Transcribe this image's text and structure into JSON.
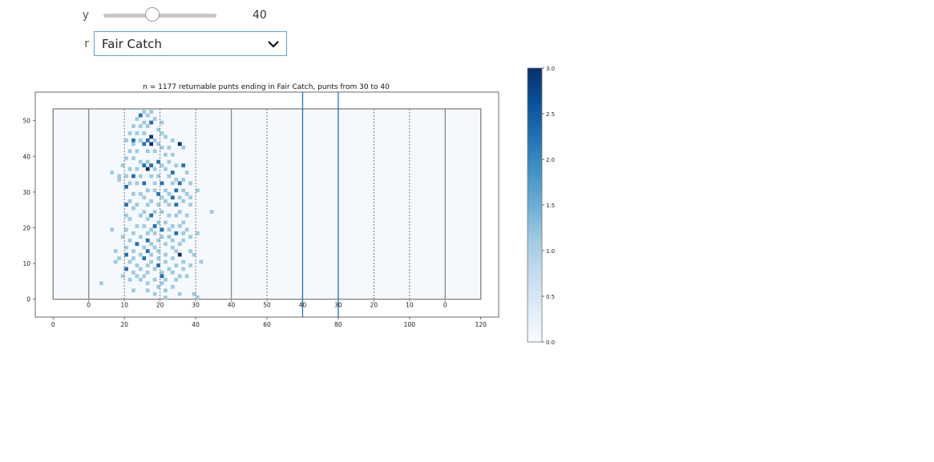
{
  "controls": {
    "y_label": "y",
    "y_value": "40",
    "y_slider_fraction": 0.43,
    "r_label": "r",
    "r_selected": "Fair Catch"
  },
  "chart_data": {
    "type": "heatmap",
    "title": "n = 1177 returnable punts ending in Fair Catch, punts from 30 to 40",
    "xlabel": "",
    "ylabel": "",
    "xlim": [
      -5,
      125
    ],
    "ylim": [
      -5,
      58
    ],
    "x_ticks": [
      0,
      20,
      40,
      60,
      80,
      100,
      120
    ],
    "y_ticks": [
      0,
      10,
      20,
      30,
      40,
      50
    ],
    "field": {
      "x_range": [
        0,
        120
      ],
      "y_range": [
        0,
        53.3
      ],
      "end_zone_lines": [
        10,
        110
      ],
      "solid_lines": [
        10,
        50,
        110
      ],
      "dashed_lines": [
        20,
        30,
        40,
        60,
        90,
        100
      ],
      "range_lines": [
        70,
        80
      ],
      "yard_labels": [
        {
          "x": 10,
          "text": "0"
        },
        {
          "x": 20,
          "text": "10"
        },
        {
          "x": 30,
          "text": "20"
        },
        {
          "x": 40,
          "text": "30"
        },
        {
          "x": 50,
          "text": "40"
        },
        {
          "x": 60,
          "text": "50"
        },
        {
          "x": 70,
          "text": "40"
        },
        {
          "x": 80,
          "text": "30"
        },
        {
          "x": 90,
          "text": "20"
        },
        {
          "x": 100,
          "text": "10"
        },
        {
          "x": 110,
          "text": "0"
        }
      ]
    },
    "colorbar": {
      "min": 0,
      "max": 3,
      "ticks": [
        "0.0",
        "0.5",
        "1.0",
        "1.5",
        "2.0",
        "2.5",
        "3.0"
      ],
      "colormap": "Blues"
    },
    "cells": [
      [
        25,
        52,
        1
      ],
      [
        27,
        52,
        1
      ],
      [
        24,
        51,
        2
      ],
      [
        26,
        51,
        1
      ],
      [
        28,
        50,
        1
      ],
      [
        23,
        50,
        1
      ],
      [
        25,
        49,
        1
      ],
      [
        27,
        49,
        2
      ],
      [
        30,
        49,
        1
      ],
      [
        22,
        48,
        1
      ],
      [
        24,
        48,
        1
      ],
      [
        26,
        48,
        1
      ],
      [
        29,
        47,
        1
      ],
      [
        21,
        46,
        1
      ],
      [
        23,
        46,
        1
      ],
      [
        25,
        46,
        1
      ],
      [
        27,
        45,
        3
      ],
      [
        30,
        46,
        1
      ],
      [
        20,
        44,
        1
      ],
      [
        22,
        44,
        2
      ],
      [
        24,
        44,
        1
      ],
      [
        26,
        44,
        2
      ],
      [
        28,
        44,
        1
      ],
      [
        31,
        45,
        1
      ],
      [
        33,
        44,
        1
      ],
      [
        35,
        43,
        3
      ],
      [
        22,
        43,
        1
      ],
      [
        25,
        43,
        2
      ],
      [
        27,
        43,
        3
      ],
      [
        29,
        43,
        1
      ],
      [
        30,
        42,
        1
      ],
      [
        32,
        42,
        1
      ],
      [
        36,
        42,
        1
      ],
      [
        21,
        41,
        1
      ],
      [
        23,
        41,
        1
      ],
      [
        26,
        41,
        1
      ],
      [
        28,
        41,
        1
      ],
      [
        31,
        40,
        1
      ],
      [
        33,
        40,
        1
      ],
      [
        20,
        39,
        1
      ],
      [
        22,
        39,
        1
      ],
      [
        24,
        38,
        1
      ],
      [
        26,
        38,
        1
      ],
      [
        29,
        38,
        2
      ],
      [
        32,
        38,
        1
      ],
      [
        25,
        37,
        2
      ],
      [
        27,
        37,
        2
      ],
      [
        30,
        37,
        1
      ],
      [
        34,
        37,
        1
      ],
      [
        36,
        37,
        2
      ],
      [
        19,
        37,
        1
      ],
      [
        21,
        36,
        1
      ],
      [
        23,
        36,
        1
      ],
      [
        26,
        36,
        3
      ],
      [
        28,
        36,
        1
      ],
      [
        31,
        36,
        1
      ],
      [
        33,
        35,
        2
      ],
      [
        37,
        35,
        1
      ],
      [
        16,
        35,
        1
      ],
      [
        18,
        34,
        1
      ],
      [
        20,
        34,
        1
      ],
      [
        22,
        34,
        2
      ],
      [
        24,
        34,
        1
      ],
      [
        27,
        34,
        1
      ],
      [
        29,
        34,
        1
      ],
      [
        32,
        34,
        1
      ],
      [
        34,
        33,
        1
      ],
      [
        36,
        33,
        1
      ],
      [
        18,
        33,
        1
      ],
      [
        21,
        32,
        1
      ],
      [
        23,
        32,
        1
      ],
      [
        25,
        32,
        2
      ],
      [
        28,
        32,
        1
      ],
      [
        30,
        32,
        2
      ],
      [
        33,
        32,
        1
      ],
      [
        35,
        32,
        2
      ],
      [
        38,
        32,
        1
      ],
      [
        20,
        31,
        2
      ],
      [
        26,
        30,
        1
      ],
      [
        28,
        30,
        1
      ],
      [
        31,
        30,
        1
      ],
      [
        34,
        30,
        2
      ],
      [
        36,
        30,
        1
      ],
      [
        40,
        30,
        1
      ],
      [
        22,
        29,
        1
      ],
      [
        24,
        29,
        1
      ],
      [
        29,
        29,
        2
      ],
      [
        32,
        29,
        1
      ],
      [
        37,
        29,
        1
      ],
      [
        25,
        28,
        1
      ],
      [
        30,
        28,
        1
      ],
      [
        33,
        28,
        2
      ],
      [
        35,
        28,
        1
      ],
      [
        38,
        28,
        1
      ],
      [
        21,
        27,
        1
      ],
      [
        27,
        27,
        1
      ],
      [
        31,
        27,
        1
      ],
      [
        34,
        26,
        2
      ],
      [
        36,
        27,
        1
      ],
      [
        20,
        26,
        2
      ],
      [
        23,
        26,
        1
      ],
      [
        26,
        26,
        1
      ],
      [
        29,
        26,
        1
      ],
      [
        32,
        26,
        1
      ],
      [
        38,
        26,
        1
      ],
      [
        22,
        25,
        1
      ],
      [
        25,
        24,
        1
      ],
      [
        28,
        24,
        1
      ],
      [
        30,
        24,
        1
      ],
      [
        35,
        24,
        1
      ],
      [
        44,
        24,
        1
      ],
      [
        20,
        23,
        1
      ],
      [
        24,
        23,
        1
      ],
      [
        27,
        23,
        2
      ],
      [
        32,
        23,
        1
      ],
      [
        34,
        23,
        1
      ],
      [
        37,
        23,
        1
      ],
      [
        21,
        22,
        1
      ],
      [
        26,
        22,
        1
      ],
      [
        29,
        21,
        1
      ],
      [
        31,
        21,
        1
      ],
      [
        36,
        21,
        1
      ],
      [
        23,
        20,
        1
      ],
      [
        25,
        20,
        1
      ],
      [
        28,
        20,
        2
      ],
      [
        33,
        20,
        1
      ],
      [
        35,
        20,
        1
      ],
      [
        16,
        19,
        1
      ],
      [
        20,
        19,
        1
      ],
      [
        27,
        19,
        1
      ],
      [
        30,
        19,
        2
      ],
      [
        32,
        19,
        1
      ],
      [
        37,
        19,
        1
      ],
      [
        22,
        18,
        1
      ],
      [
        26,
        18,
        1
      ],
      [
        28,
        18,
        1
      ],
      [
        34,
        18,
        2
      ],
      [
        36,
        18,
        1
      ],
      [
        40,
        18,
        1
      ],
      [
        19,
        17,
        1
      ],
      [
        24,
        17,
        1
      ],
      [
        30,
        17,
        1
      ],
      [
        32,
        17,
        1
      ],
      [
        38,
        17,
        1
      ],
      [
        21,
        16,
        1
      ],
      [
        26,
        16,
        2
      ],
      [
        29,
        16,
        1
      ],
      [
        33,
        16,
        1
      ],
      [
        36,
        16,
        1
      ],
      [
        23,
        15,
        2
      ],
      [
        27,
        15,
        1
      ],
      [
        31,
        15,
        1
      ],
      [
        35,
        15,
        1
      ],
      [
        20,
        14,
        1
      ],
      [
        25,
        14,
        1
      ],
      [
        28,
        14,
        1
      ],
      [
        33,
        14,
        1
      ],
      [
        17,
        13,
        1
      ],
      [
        22,
        13,
        1
      ],
      [
        26,
        13,
        2
      ],
      [
        29,
        13,
        1
      ],
      [
        34,
        13,
        1
      ],
      [
        38,
        13,
        1
      ],
      [
        20,
        12,
        2
      ],
      [
        24,
        12,
        1
      ],
      [
        27,
        12,
        1
      ],
      [
        31,
        12,
        1
      ],
      [
        35,
        12,
        3
      ],
      [
        39,
        12,
        1
      ],
      [
        18,
        11,
        1
      ],
      [
        22,
        11,
        1
      ],
      [
        25,
        11,
        2
      ],
      [
        29,
        11,
        1
      ],
      [
        33,
        11,
        1
      ],
      [
        17,
        10,
        1
      ],
      [
        21,
        10,
        1
      ],
      [
        27,
        10,
        1
      ],
      [
        31,
        10,
        1
      ],
      [
        36,
        10,
        1
      ],
      [
        41,
        10,
        1
      ],
      [
        23,
        9,
        1
      ],
      [
        26,
        9,
        1
      ],
      [
        29,
        9,
        2
      ],
      [
        34,
        9,
        1
      ],
      [
        38,
        9,
        1
      ],
      [
        20,
        8,
        2
      ],
      [
        24,
        8,
        1
      ],
      [
        28,
        8,
        1
      ],
      [
        32,
        8,
        1
      ],
      [
        36,
        8,
        1
      ],
      [
        22,
        7,
        1
      ],
      [
        26,
        7,
        1
      ],
      [
        30,
        7,
        1
      ],
      [
        33,
        7,
        1
      ],
      [
        19,
        6,
        1
      ],
      [
        23,
        6,
        1
      ],
      [
        25,
        6,
        1
      ],
      [
        30,
        6,
        2
      ],
      [
        35,
        6,
        1
      ],
      [
        37,
        6,
        1
      ],
      [
        21,
        5,
        1
      ],
      [
        24,
        5,
        1
      ],
      [
        28,
        5,
        1
      ],
      [
        31,
        5,
        1
      ],
      [
        34,
        5,
        1
      ],
      [
        26,
        4,
        1
      ],
      [
        30,
        4,
        1
      ],
      [
        13,
        4,
        1
      ],
      [
        29,
        3,
        1
      ],
      [
        33,
        3,
        1
      ],
      [
        22,
        2,
        1
      ],
      [
        26,
        2,
        1
      ],
      [
        31,
        2,
        1
      ],
      [
        28,
        1,
        1
      ],
      [
        35,
        1,
        1
      ],
      [
        39,
        1,
        1
      ],
      [
        31,
        0,
        1
      ],
      [
        40,
        0,
        1
      ]
    ]
  }
}
